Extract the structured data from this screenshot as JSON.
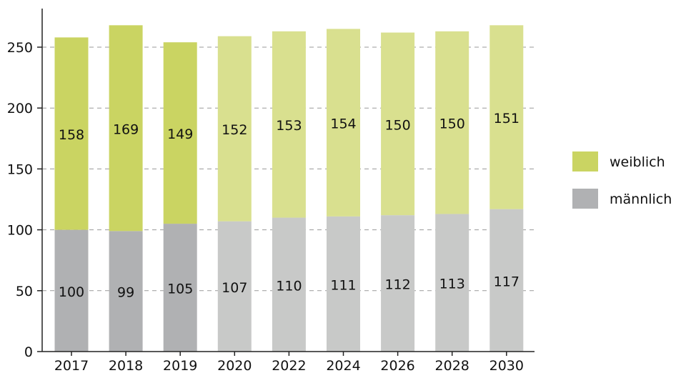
{
  "chart_data": {
    "type": "bar",
    "stacked": true,
    "categories": [
      "2017",
      "2018",
      "2019",
      "2020",
      "2022",
      "2024",
      "2026",
      "2028",
      "2030"
    ],
    "series": [
      {
        "name": "männlich",
        "values": [
          100,
          99,
          105,
          107,
          110,
          111,
          112,
          113,
          117
        ],
        "labels": [
          "100",
          "99",
          "105",
          "107",
          "110",
          "111",
          "112",
          "113",
          "117"
        ]
      },
      {
        "name": "weiblich",
        "values": [
          158,
          169,
          149,
          152,
          153,
          154,
          150,
          150,
          151
        ],
        "labels": [
          "158",
          "169",
          "149",
          "152",
          "153",
          "154",
          "150",
          "150",
          "151"
        ]
      }
    ],
    "ylim": [
      0,
      275
    ],
    "yticks": [
      "0",
      "50",
      "100",
      "150",
      "200",
      "250"
    ],
    "grid": "horizontal dashed",
    "legend_position": "right",
    "colors": {
      "weiblich_actual": "#cad462",
      "weiblich_projection": "#d9e08f",
      "maennlich_actual": "#b0b1b3",
      "maennlich_projection": "#c8c9c8",
      "legend_weiblich": "#cad462",
      "legend_maennlich": "#b0b1b3"
    },
    "actual_years": [
      "2017",
      "2018",
      "2019"
    ]
  }
}
